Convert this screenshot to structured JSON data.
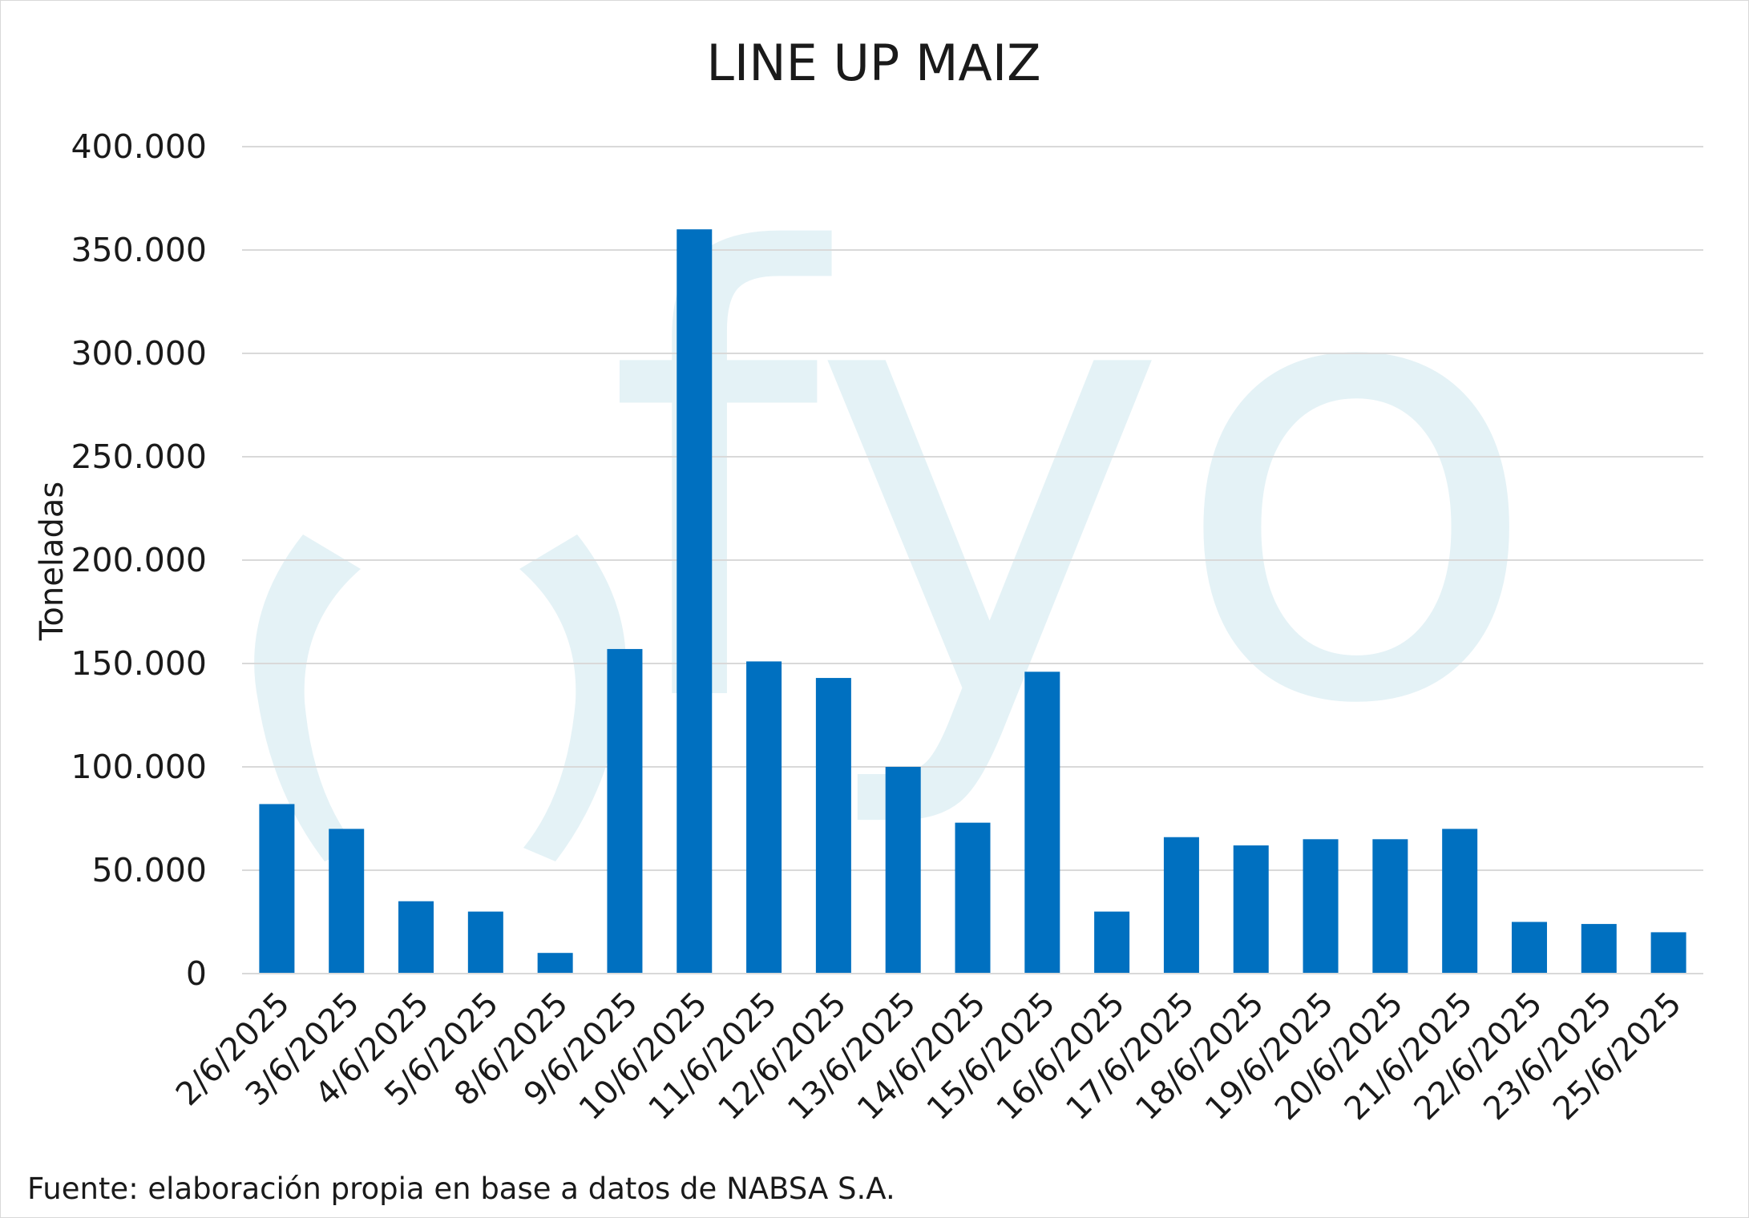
{
  "chart_data": {
    "type": "bar",
    "title": "LINE UP MAIZ",
    "ylabel": "Toneladas",
    "xlabel": "",
    "ylim": [
      0,
      400000
    ],
    "yticks": [
      0,
      50000,
      100000,
      150000,
      200000,
      250000,
      300000,
      350000,
      400000
    ],
    "ytick_labels": [
      "0",
      "50.000",
      "100.000",
      "150.000",
      "200.000",
      "250.000",
      "300.000",
      "350.000",
      "400.000"
    ],
    "grid": true,
    "categories": [
      "2/6/2025",
      "3/6/2025",
      "4/6/2025",
      "5/6/2025",
      "8/6/2025",
      "9/6/2025",
      "10/6/2025",
      "11/6/2025",
      "12/6/2025",
      "13/6/2025",
      "14/6/2025",
      "15/6/2025",
      "16/6/2025",
      "17/6/2025",
      "18/6/2025",
      "19/6/2025",
      "20/6/2025",
      "21/6/2025",
      "22/6/2025",
      "23/6/2025",
      "25/6/2025"
    ],
    "values": [
      82000,
      70000,
      35000,
      30000,
      10000,
      157000,
      360000,
      151000,
      143000,
      100000,
      73000,
      146000,
      30000,
      66000,
      62000,
      65000,
      65000,
      70000,
      25000,
      24000,
      20000
    ],
    "bar_color": "#0070c0",
    "grid_color": "#d9d9d9"
  },
  "source_note": "Fuente: elaboración propia en base a datos de NABSA S.A.",
  "watermark": {
    "text": "fyo",
    "color": "#e4f2f6"
  }
}
